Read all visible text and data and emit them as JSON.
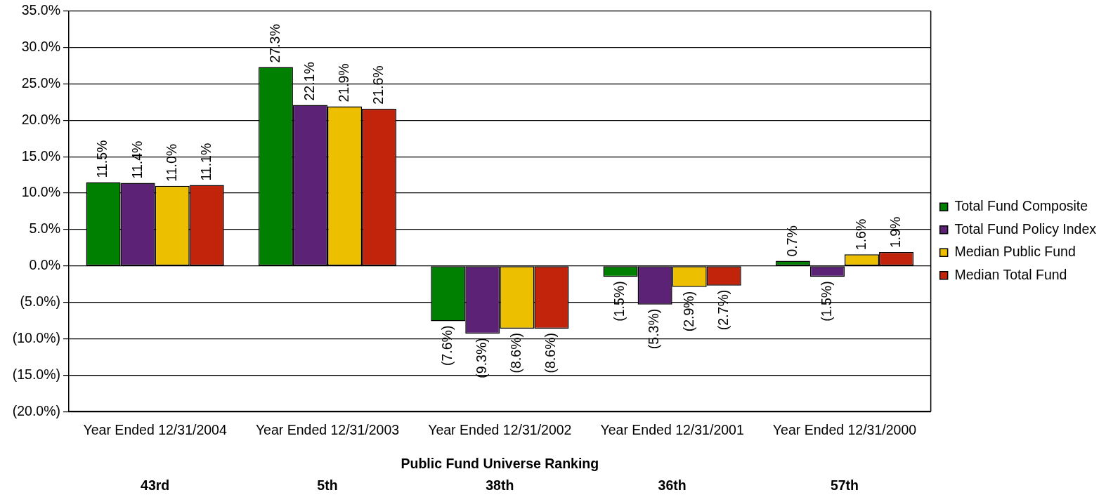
{
  "chart_data": {
    "type": "bar",
    "categories": [
      "Year Ended 12/31/2004",
      "Year Ended 12/31/2003",
      "Year Ended 12/31/2002",
      "Year Ended 12/31/2001",
      "Year Ended 12/31/2000"
    ],
    "series": [
      {
        "name": "Total Fund Composite",
        "color": "#008000",
        "values": [
          11.5,
          27.3,
          -7.6,
          -1.5,
          0.7
        ],
        "value_labels": [
          "11.5%",
          "27.3%",
          "(7.6%)",
          "(1.5%)",
          "0.7%"
        ]
      },
      {
        "name": "Total Fund Policy Index",
        "color": "#5c2275",
        "values": [
          11.4,
          22.1,
          -9.3,
          -5.3,
          -1.5
        ],
        "value_labels": [
          "11.4%",
          "22.1%",
          "(9.3%)",
          "(5.3%)",
          "(1.5%)"
        ]
      },
      {
        "name": "Median Public Fund",
        "color": "#ecc000",
        "values": [
          11.0,
          21.9,
          -8.6,
          -2.9,
          1.6
        ],
        "value_labels": [
          "11.0%",
          "21.9%",
          "(8.6%)",
          "(2.9%)",
          "1.6%"
        ]
      },
      {
        "name": "Median Total Fund",
        "color": "#c2230b",
        "values": [
          11.1,
          21.6,
          -8.6,
          -2.7,
          1.9
        ],
        "value_labels": [
          "11.1%",
          "21.6%",
          "(8.6%)",
          "(2.7%)",
          "1.9%"
        ]
      }
    ],
    "ylim": [
      -20,
      35
    ],
    "yticks": [
      {
        "value": -20,
        "label": "(20.0%)"
      },
      {
        "value": -15,
        "label": "(15.0%)"
      },
      {
        "value": -10,
        "label": "(10.0%)"
      },
      {
        "value": -5,
        "label": "(5.0%)"
      },
      {
        "value": 0,
        "label": "0.0%"
      },
      {
        "value": 5,
        "label": "5.0%"
      },
      {
        "value": 10,
        "label": "10.0%"
      },
      {
        "value": 15,
        "label": "15.0%"
      },
      {
        "value": 20,
        "label": "20.0%"
      },
      {
        "value": 25,
        "label": "25.0%"
      },
      {
        "value": 30,
        "label": "30.0%"
      },
      {
        "value": 35,
        "label": "35.0%"
      }
    ],
    "grid": "y",
    "legend": "right",
    "xlabel": "Public Fund Universe Ranking",
    "annotations": [
      "43rd",
      "5th",
      "38th",
      "36th",
      "57th"
    ]
  }
}
